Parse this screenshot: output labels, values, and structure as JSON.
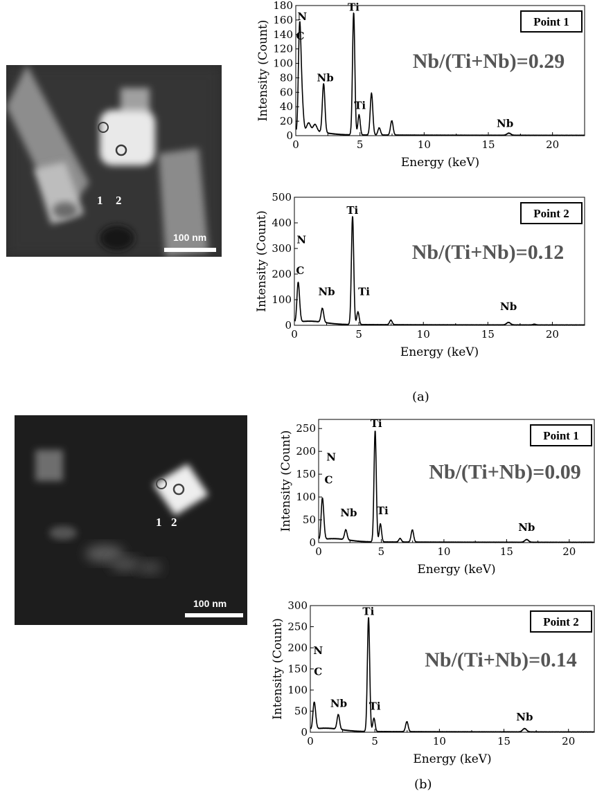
{
  "panels": [
    {
      "label": "(a)",
      "micrograph": {
        "scale_bar": "100 nm",
        "point_labels": [
          "1",
          "2"
        ]
      },
      "spectra": [
        {
          "chart_data": {
            "type": "line",
            "xlabel": "Energy (keV)",
            "ylabel": "Intensity (Count)",
            "xlim": [
              0,
              22.5
            ],
            "ylim": [
              0,
              180
            ],
            "xticks": [
              0,
              5,
              10,
              15,
              20
            ],
            "yticks": [
              0,
              20,
              40,
              60,
              80,
              100,
              120,
              140,
              160,
              180
            ],
            "box_label": "Point 1",
            "ratio_text": "Nb/(Ti+Nb)=0.29",
            "peaks": [
              {
                "x": 0.28,
                "y": 120,
                "w": 0.09
              },
              {
                "x": 0.39,
                "y": 55,
                "w": 0.09
              },
              {
                "x": 0.52,
                "y": 30,
                "w": 0.1
              },
              {
                "x": 1.0,
                "y": 12,
                "w": 0.15
              },
              {
                "x": 1.5,
                "y": 10,
                "w": 0.15
              },
              {
                "x": 2.17,
                "y": 68,
                "w": 0.1
              },
              {
                "x": 4.51,
                "y": 170,
                "w": 0.09
              },
              {
                "x": 4.93,
                "y": 28,
                "w": 0.09
              },
              {
                "x": 5.9,
                "y": 58,
                "w": 0.1
              },
              {
                "x": 6.5,
                "y": 10,
                "w": 0.1
              },
              {
                "x": 7.48,
                "y": 20,
                "w": 0.1
              },
              {
                "x": 16.6,
                "y": 3,
                "w": 0.15
              }
            ],
            "annotations": [
              {
                "text": "N",
                "x": 0.5,
                "y": 160
              },
              {
                "text": "C",
                "x": 0.35,
                "y": 133
              },
              {
                "text": "Nb",
                "x": 2.3,
                "y": 75
              },
              {
                "text": "Ti",
                "x": 4.5,
                "y": 173
              },
              {
                "text": "Ti",
                "x": 5.0,
                "y": 37
              },
              {
                "text": "Nb",
                "x": 16.3,
                "y": 12
              }
            ]
          }
        },
        {
          "chart_data": {
            "type": "line",
            "xlabel": "Energy (keV)",
            "ylabel": "Intensity (Count)",
            "xlim": [
              0,
              22.5
            ],
            "ylim": [
              0,
              500
            ],
            "xticks": [
              0,
              5,
              10,
              15,
              20
            ],
            "yticks": [
              0,
              100,
              200,
              300,
              400,
              500
            ],
            "box_label": "Point 2",
            "ratio_text": "Nb/(Ti+Nb)=0.12",
            "peaks": [
              {
                "x": 0.28,
                "y": 135,
                "w": 0.09
              },
              {
                "x": 0.39,
                "y": 40,
                "w": 0.09
              },
              {
                "x": 2.17,
                "y": 55,
                "w": 0.1
              },
              {
                "x": 4.51,
                "y": 425,
                "w": 0.09
              },
              {
                "x": 4.93,
                "y": 50,
                "w": 0.09
              },
              {
                "x": 7.48,
                "y": 18,
                "w": 0.1
              },
              {
                "x": 16.6,
                "y": 10,
                "w": 0.15
              },
              {
                "x": 18.6,
                "y": 3,
                "w": 0.1
              }
            ],
            "annotations": [
              {
                "text": "N",
                "x": 0.55,
                "y": 320
              },
              {
                "text": "C",
                "x": 0.45,
                "y": 200
              },
              {
                "text": "Nb",
                "x": 2.5,
                "y": 117
              },
              {
                "text": "Ti",
                "x": 4.5,
                "y": 435
              },
              {
                "text": "Ti",
                "x": 5.4,
                "y": 117
              },
              {
                "text": "Nb",
                "x": 16.6,
                "y": 60
              }
            ]
          }
        }
      ]
    },
    {
      "label": "(b)",
      "micrograph": {
        "scale_bar": "100 nm",
        "point_labels": [
          "1",
          "2"
        ]
      },
      "spectra": [
        {
          "chart_data": {
            "type": "line",
            "xlabel": "Energy (keV)",
            "ylabel": "Intensity (Count)",
            "xlim": [
              0,
              22
            ],
            "ylim": [
              0,
              270
            ],
            "xticks": [
              0,
              5,
              10,
              15,
              20
            ],
            "yticks": [
              0,
              50,
              100,
              150,
              200,
              250
            ],
            "box_label": "Point 1",
            "ratio_text": "Nb/(Ti+Nb)=0.09",
            "peaks": [
              {
                "x": 0.28,
                "y": 75,
                "w": 0.09
              },
              {
                "x": 0.39,
                "y": 30,
                "w": 0.09
              },
              {
                "x": 2.17,
                "y": 22,
                "w": 0.1
              },
              {
                "x": 4.51,
                "y": 245,
                "w": 0.09
              },
              {
                "x": 4.93,
                "y": 40,
                "w": 0.09
              },
              {
                "x": 6.5,
                "y": 8,
                "w": 0.1
              },
              {
                "x": 7.48,
                "y": 27,
                "w": 0.1
              },
              {
                "x": 16.6,
                "y": 6,
                "w": 0.15
              }
            ],
            "annotations": [
              {
                "text": "N",
                "x": 1.0,
                "y": 180
              },
              {
                "text": "C",
                "x": 0.8,
                "y": 130
              },
              {
                "text": "Nb",
                "x": 2.4,
                "y": 58
              },
              {
                "text": "Ti",
                "x": 4.6,
                "y": 253
              },
              {
                "text": "Ti",
                "x": 5.1,
                "y": 62
              },
              {
                "text": "Nb",
                "x": 16.6,
                "y": 26
              }
            ]
          }
        },
        {
          "chart_data": {
            "type": "line",
            "xlabel": "Energy (keV)",
            "ylabel": "Intensity (Count)",
            "xlim": [
              0,
              22
            ],
            "ylim": [
              0,
              300
            ],
            "xticks": [
              0,
              5,
              10,
              15,
              20
            ],
            "yticks": [
              0,
              50,
              100,
              150,
              200,
              250,
              300
            ],
            "box_label": "Point 2",
            "ratio_text": "Nb/(Ti+Nb)=0.14",
            "peaks": [
              {
                "x": 0.28,
                "y": 52,
                "w": 0.09
              },
              {
                "x": 0.39,
                "y": 22,
                "w": 0.09
              },
              {
                "x": 2.17,
                "y": 35,
                "w": 0.1
              },
              {
                "x": 4.51,
                "y": 272,
                "w": 0.09
              },
              {
                "x": 4.93,
                "y": 32,
                "w": 0.09
              },
              {
                "x": 7.48,
                "y": 24,
                "w": 0.1
              },
              {
                "x": 16.6,
                "y": 8,
                "w": 0.15
              }
            ],
            "annotations": [
              {
                "text": "N",
                "x": 0.6,
                "y": 185
              },
              {
                "text": "C",
                "x": 0.6,
                "y": 135
              },
              {
                "text": "Nb",
                "x": 2.2,
                "y": 60
              },
              {
                "text": "Ti",
                "x": 4.5,
                "y": 278
              },
              {
                "text": "Ti",
                "x": 5.0,
                "y": 53
              },
              {
                "text": "Nb",
                "x": 16.6,
                "y": 28
              }
            ]
          }
        }
      ]
    }
  ]
}
